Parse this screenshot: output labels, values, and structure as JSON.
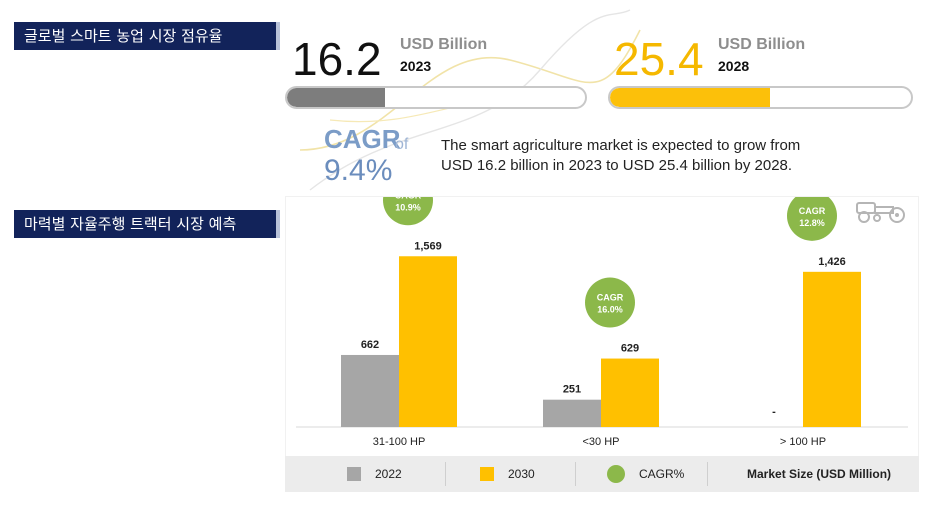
{
  "headers": {
    "market_share_tag": "글로벌 스마트 농업 시장 점유율",
    "forecast_tag": "마력별 자율주행 트랙터 시장 예측"
  },
  "stats": {
    "current": {
      "value": "16.2",
      "unit": "USD Billion",
      "year": "2023",
      "progress": 0.33,
      "color": "#7d7d7d"
    },
    "forecast": {
      "value": "25.4",
      "unit": "USD Billion",
      "year": "2028",
      "progress": 0.53,
      "color": "#fcc00a"
    }
  },
  "cagr": {
    "label": "CAGR",
    "of": "of",
    "value": "9.4%",
    "description_line1": "The smart agriculture market is expected to grow from",
    "description_line2": "USD 16.2 billion in 2023 to USD 25.4 billion by 2028."
  },
  "icons": {
    "tractor": "tractor-icon"
  },
  "chart_data": {
    "type": "bar",
    "categories": [
      "31-100 HP",
      "<30 HP",
      "> 100 HP"
    ],
    "series": [
      {
        "name": "2022",
        "values": [
          662,
          251,
          null
        ],
        "labels": [
          "662",
          "251",
          "-"
        ],
        "color": "#a6a6a6"
      },
      {
        "name": "2030",
        "values": [
          1569,
          629,
          1426
        ],
        "labels": [
          "1,569",
          "629",
          "1,426"
        ],
        "color": "#ffc000"
      }
    ],
    "cagr_series": {
      "name": "CAGR%",
      "values": [
        10.9,
        16.0,
        12.8
      ],
      "labels": [
        [
          "CAGR",
          "10.9%"
        ],
        [
          "CAGR",
          "16.0%"
        ],
        [
          "CAGR",
          "12.8%"
        ]
      ],
      "color": "#8cb84a"
    },
    "legend": [
      "2022",
      "2030",
      "CAGR%",
      "Market Size (USD Million)"
    ],
    "legend_placement": "bottom",
    "ylim": [
      0,
      1700
    ],
    "grid": false
  }
}
